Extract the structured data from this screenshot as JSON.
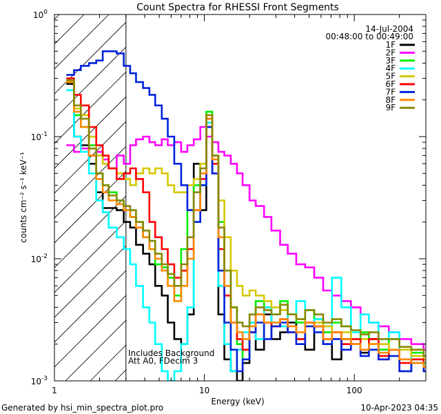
{
  "chart_data": {
    "type": "line",
    "style": "histogram-step",
    "title": "Count Spectra for RHESSI Front Segments",
    "xlabel": "Energy (keV)",
    "ylabel": "counts cm⁻² s⁻¹ keV⁻¹",
    "xscale": "log",
    "yscale": "log",
    "xlim": [
      1,
      300
    ],
    "ylim": [
      0.001,
      1
    ],
    "x_tick_labels": [
      {
        "value": 1,
        "label": "1"
      },
      {
        "value": 10,
        "label": "10"
      },
      {
        "value": 100,
        "label": "100"
      }
    ],
    "y_tick_labels": [
      {
        "value": 1,
        "base": "10",
        "exp": "0"
      },
      {
        "value": 0.1,
        "base": "10",
        "exp": "-1"
      },
      {
        "value": 0.01,
        "base": "10",
        "exp": "-2"
      },
      {
        "value": 0.001,
        "base": "10",
        "exp": "-3"
      }
    ],
    "hatched_region": [
      1,
      3
    ],
    "date_label": "14-Jul-2004",
    "time_label": "00:48:00 to 00:49:00",
    "notes": [
      "Includes Background",
      "Att A0, FDecim 3"
    ],
    "footer_left": "Generated by hsi_min_spectra_plot.pro",
    "footer_right": "10-Apr-2023 04:35",
    "legend_position": "top-right",
    "series": [
      {
        "name": "1F",
        "color": "#000000",
        "x": [
          1.2,
          1.35,
          1.5,
          1.7,
          1.9,
          2.1,
          2.3,
          2.6,
          2.9,
          3.2,
          3.5,
          3.9,
          4.3,
          4.7,
          5.2,
          5.7,
          6.3,
          7.0,
          7.7,
          8.5,
          9.4,
          10.3,
          11.3,
          12.4,
          13.6,
          15.0,
          16.5,
          18.0,
          20.0,
          22.0,
          25.0,
          28.0,
          32.0,
          36.0,
          41.0,
          47.0,
          54.0,
          62.0,
          71.0,
          82.0,
          95.0,
          110.0,
          125.0,
          145.0,
          170.0,
          200.0,
          240.0,
          290.0
        ],
        "y": [
          0.27,
          0.1,
          0.085,
          0.06,
          0.035,
          0.026,
          0.026,
          0.025,
          0.02,
          0.018,
          0.013,
          0.011,
          0.009,
          0.006,
          0.005,
          0.003,
          0.0022,
          0.002,
          0.0035,
          0.06,
          0.025,
          0.12,
          0.05,
          0.0035,
          0.0015,
          0.0012,
          0.001,
          0.0014,
          0.0025,
          0.0018,
          0.0035,
          0.0022,
          0.0025,
          0.003,
          0.0022,
          0.0018,
          0.0028,
          0.002,
          0.0015,
          0.0022,
          0.002,
          0.0017,
          0.0022,
          0.0015,
          0.0018,
          0.0012,
          0.0015,
          0.0012
        ]
      },
      {
        "name": "2F",
        "color": "#ff00ff",
        "x": [
          1.2,
          1.35,
          1.5,
          1.7,
          1.9,
          2.1,
          2.3,
          2.6,
          2.9,
          3.2,
          3.5,
          3.9,
          4.3,
          4.7,
          5.2,
          5.7,
          6.3,
          7.0,
          7.7,
          8.5,
          9.4,
          10.3,
          11.3,
          12.4,
          13.6,
          15.0,
          16.5,
          18.0,
          20.0,
          22.0,
          25.0,
          28.0,
          32.0,
          36.0,
          41.0,
          47.0,
          54.0,
          62.0,
          71.0,
          82.0,
          95.0,
          110.0,
          125.0,
          145.0,
          170.0,
          200.0,
          240.0,
          290.0
        ],
        "y": [
          0.085,
          0.075,
          0.08,
          0.07,
          0.075,
          0.065,
          0.055,
          0.07,
          0.06,
          0.085,
          0.095,
          0.1,
          0.09,
          0.085,
          0.095,
          0.085,
          0.09,
          0.075,
          0.085,
          0.095,
          0.12,
          0.1,
          0.09,
          0.075,
          0.07,
          0.06,
          0.05,
          0.04,
          0.03,
          0.027,
          0.022,
          0.017,
          0.013,
          0.011,
          0.009,
          0.0085,
          0.007,
          0.0055,
          0.005,
          0.0045,
          0.004,
          0.0035,
          0.003,
          0.0028,
          0.0025,
          0.0022,
          0.002,
          0.0018
        ]
      },
      {
        "name": "3F",
        "color": "#00ee00",
        "x": [
          1.2,
          1.35,
          1.5,
          1.7,
          1.9,
          2.1,
          2.3,
          2.6,
          2.9,
          3.2,
          3.5,
          3.9,
          4.3,
          4.7,
          5.2,
          5.7,
          6.3,
          7.0,
          7.7,
          8.5,
          9.4,
          10.3,
          11.3,
          12.4,
          13.6,
          15.0,
          16.5,
          18.0,
          20.0,
          22.0,
          25.0,
          28.0,
          32.0,
          36.0,
          41.0,
          47.0,
          54.0,
          62.0,
          71.0,
          82.0,
          95.0,
          110.0,
          125.0,
          145.0,
          170.0,
          200.0,
          240.0,
          290.0
        ],
        "y": [
          0.28,
          0.15,
          0.12,
          0.085,
          0.05,
          0.04,
          0.035,
          0.03,
          0.025,
          0.022,
          0.02,
          0.015,
          0.012,
          0.009,
          0.0085,
          0.007,
          0.005,
          0.012,
          0.025,
          0.04,
          0.06,
          0.16,
          0.07,
          0.02,
          0.008,
          0.004,
          0.002,
          0.0015,
          0.003,
          0.0045,
          0.004,
          0.0035,
          0.0045,
          0.0035,
          0.003,
          0.0038,
          0.0032,
          0.0025,
          0.003,
          0.0028,
          0.0022,
          0.0025,
          0.002,
          0.0018,
          0.0022,
          0.0015,
          0.0017,
          0.0014
        ]
      },
      {
        "name": "4F",
        "color": "#00ffff",
        "x": [
          1.2,
          1.35,
          1.5,
          1.7,
          1.9,
          2.1,
          2.3,
          2.6,
          2.9,
          3.2,
          3.5,
          3.9,
          4.3,
          4.7,
          5.2,
          5.7,
          6.3,
          7.0,
          7.7,
          8.5,
          9.4,
          10.3,
          11.3,
          12.4,
          13.6,
          15.0,
          16.5,
          18.0,
          20.0,
          22.0,
          25.0,
          28.0,
          32.0,
          36.0,
          41.0,
          47.0,
          54.0,
          62.0,
          71.0,
          82.0,
          95.0,
          110.0,
          125.0,
          145.0,
          170.0,
          200.0,
          240.0,
          290.0
        ],
        "y": [
          0.24,
          0.1,
          0.075,
          0.05,
          0.03,
          0.024,
          0.018,
          0.015,
          0.012,
          0.009,
          0.006,
          0.004,
          0.003,
          0.002,
          0.0012,
          0.001,
          0.0012,
          0.002,
          0.004,
          0.02,
          0.04,
          0.13,
          0.06,
          0.006,
          0.002,
          0.0012,
          0.0018,
          0.0025,
          0.003,
          0.0022,
          0.004,
          0.003,
          0.0028,
          0.0035,
          0.0045,
          0.003,
          0.0032,
          0.0028,
          0.007,
          0.004,
          0.0025,
          0.0035,
          0.003,
          0.0022,
          0.0025,
          0.0018,
          0.0015,
          0.0012
        ]
      },
      {
        "name": "5F",
        "color": "#d4c800",
        "x": [
          1.2,
          1.35,
          1.5,
          1.7,
          1.9,
          2.1,
          2.3,
          2.6,
          2.9,
          3.2,
          3.5,
          3.9,
          4.3,
          4.7,
          5.2,
          5.7,
          6.3,
          7.0,
          7.7,
          8.5,
          9.4,
          10.3,
          11.3,
          12.4,
          13.6,
          15.0,
          16.5,
          18.0,
          20.0,
          22.0,
          25.0,
          28.0,
          32.0,
          36.0,
          41.0,
          47.0,
          54.0,
          62.0,
          71.0,
          82.0,
          95.0,
          110.0,
          125.0,
          145.0,
          170.0,
          200.0,
          240.0,
          290.0
        ],
        "y": [
          0.28,
          0.17,
          0.15,
          0.1,
          0.07,
          0.06,
          0.055,
          0.05,
          0.045,
          0.04,
          0.05,
          0.055,
          0.05,
          0.055,
          0.05,
          0.04,
          0.035,
          0.035,
          0.04,
          0.045,
          0.06,
          0.15,
          0.07,
          0.03,
          0.015,
          0.008,
          0.006,
          0.005,
          0.0055,
          0.005,
          0.0045,
          0.004,
          0.0038,
          0.0035,
          0.0032,
          0.003,
          0.003,
          0.0028,
          0.0025,
          0.0025,
          0.0022,
          0.0022,
          0.002,
          0.002,
          0.0018,
          0.0018,
          0.0016,
          0.0015
        ]
      },
      {
        "name": "6F",
        "color": "#ff0000",
        "x": [
          1.2,
          1.35,
          1.5,
          1.7,
          1.9,
          2.1,
          2.3,
          2.6,
          2.9,
          3.2,
          3.5,
          3.9,
          4.3,
          4.7,
          5.2,
          5.7,
          6.3,
          7.0,
          7.7,
          8.5,
          9.4,
          10.3,
          11.3,
          12.4,
          13.6,
          15.0,
          16.5,
          18.0,
          20.0,
          22.0,
          25.0,
          28.0,
          32.0,
          36.0,
          41.0,
          47.0,
          54.0,
          62.0,
          71.0,
          82.0,
          95.0,
          110.0,
          125.0,
          145.0,
          170.0,
          200.0,
          240.0,
          290.0
        ],
        "y": [
          0.3,
          0.22,
          0.18,
          0.12,
          0.085,
          0.07,
          0.055,
          0.045,
          0.05,
          0.055,
          0.045,
          0.035,
          0.02,
          0.015,
          0.012,
          0.009,
          0.007,
          0.008,
          0.012,
          0.025,
          0.045,
          0.14,
          0.06,
          0.012,
          0.005,
          0.003,
          0.0022,
          0.0018,
          0.0025,
          0.0035,
          0.003,
          0.0028,
          0.0032,
          0.0025,
          0.0022,
          0.003,
          0.0028,
          0.0022,
          0.0025,
          0.002,
          0.0022,
          0.0018,
          0.0022,
          0.0016,
          0.0018,
          0.0014,
          0.0015,
          0.0012
        ]
      },
      {
        "name": "7F",
        "color": "#0022dd",
        "x": [
          1.2,
          1.35,
          1.5,
          1.7,
          1.9,
          2.1,
          2.3,
          2.6,
          2.9,
          3.2,
          3.5,
          3.9,
          4.3,
          4.7,
          5.2,
          5.7,
          6.3,
          7.0,
          7.7,
          8.5,
          9.4,
          10.3,
          11.3,
          12.4,
          13.6,
          15.0,
          16.5,
          18.0,
          20.0,
          22.0,
          25.0,
          28.0,
          32.0,
          36.0,
          41.0,
          47.0,
          54.0,
          62.0,
          71.0,
          82.0,
          95.0,
          110.0,
          125.0,
          145.0,
          170.0,
          200.0,
          240.0,
          290.0
        ],
        "y": [
          0.32,
          0.35,
          0.38,
          0.4,
          0.42,
          0.5,
          0.5,
          0.48,
          0.38,
          0.33,
          0.28,
          0.25,
          0.22,
          0.18,
          0.14,
          0.1,
          0.06,
          0.04,
          0.025,
          0.02,
          0.04,
          0.12,
          0.05,
          0.008,
          0.003,
          0.0018,
          0.0012,
          0.0015,
          0.0025,
          0.003,
          0.0022,
          0.0028,
          0.003,
          0.0025,
          0.002,
          0.0028,
          0.0025,
          0.002,
          0.0022,
          0.0018,
          0.002,
          0.0016,
          0.0018,
          0.0015,
          0.0016,
          0.0012,
          0.0014,
          0.0012
        ]
      },
      {
        "name": "8F",
        "color": "#ff8800",
        "x": [
          1.2,
          1.35,
          1.5,
          1.7,
          1.9,
          2.1,
          2.3,
          2.6,
          2.9,
          3.2,
          3.5,
          3.9,
          4.3,
          4.7,
          5.2,
          5.7,
          6.3,
          7.0,
          7.7,
          8.5,
          9.4,
          10.3,
          11.3,
          12.4,
          13.6,
          15.0,
          16.5,
          18.0,
          20.0,
          22.0,
          25.0,
          28.0,
          32.0,
          36.0,
          41.0,
          47.0,
          54.0,
          62.0,
          71.0,
          82.0,
          95.0,
          110.0,
          125.0,
          145.0,
          170.0,
          200.0,
          240.0,
          290.0
        ],
        "y": [
          0.28,
          0.16,
          0.12,
          0.07,
          0.045,
          0.035,
          0.03,
          0.028,
          0.025,
          0.022,
          0.018,
          0.015,
          0.012,
          0.01,
          0.008,
          0.006,
          0.0045,
          0.006,
          0.01,
          0.025,
          0.05,
          0.14,
          0.065,
          0.015,
          0.006,
          0.003,
          0.0025,
          0.0022,
          0.0028,
          0.0035,
          0.003,
          0.003,
          0.0032,
          0.0028,
          0.0025,
          0.003,
          0.0028,
          0.0022,
          0.0025,
          0.0022,
          0.002,
          0.0018,
          0.002,
          0.0017,
          0.0018,
          0.0015,
          0.0014,
          0.0013
        ]
      },
      {
        "name": "9F",
        "color": "#888800",
        "x": [
          1.2,
          1.35,
          1.5,
          1.7,
          1.9,
          2.1,
          2.3,
          2.6,
          2.9,
          3.2,
          3.5,
          3.9,
          4.3,
          4.7,
          5.2,
          5.7,
          6.3,
          7.0,
          7.7,
          8.5,
          9.4,
          10.3,
          11.3,
          12.4,
          13.6,
          15.0,
          16.5,
          18.0,
          20.0,
          22.0,
          25.0,
          28.0,
          32.0,
          36.0,
          41.0,
          47.0,
          54.0,
          62.0,
          71.0,
          82.0,
          95.0,
          110.0,
          125.0,
          145.0,
          170.0,
          200.0,
          240.0,
          290.0
        ],
        "y": [
          0.29,
          0.18,
          0.14,
          0.08,
          0.05,
          0.04,
          0.033,
          0.03,
          0.027,
          0.025,
          0.02,
          0.017,
          0.014,
          0.011,
          0.009,
          0.0075,
          0.006,
          0.009,
          0.015,
          0.035,
          0.055,
          0.15,
          0.07,
          0.018,
          0.008,
          0.004,
          0.003,
          0.0028,
          0.0035,
          0.004,
          0.0038,
          0.0035,
          0.0042,
          0.0035,
          0.0032,
          0.0038,
          0.0035,
          0.003,
          0.0032,
          0.0028,
          0.0026,
          0.0024,
          0.0025,
          0.0022,
          0.0022,
          0.0019,
          0.0018,
          0.0016
        ]
      }
    ]
  }
}
